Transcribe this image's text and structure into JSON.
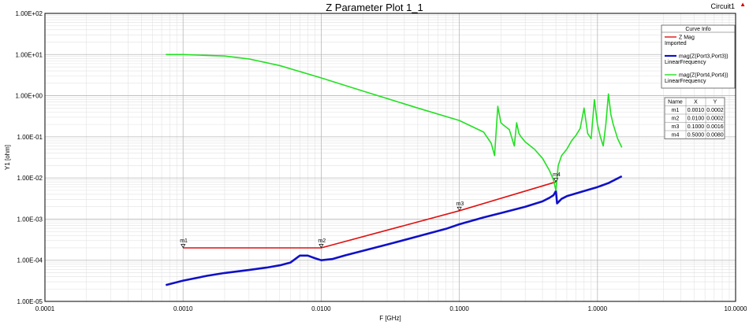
{
  "header": {
    "title": "Z Parameter Plot 1_1",
    "circuit": "Circuit1",
    "corner_icon": "red-triangle-icon"
  },
  "chart_data": {
    "type": "line",
    "title": "Z Parameter Plot 1_1",
    "xlabel": "F [GHz]",
    "ylabel": "Y1 [ohm]",
    "x_scale": "log",
    "y_scale": "log",
    "xlim": [
      0.0001,
      10.0
    ],
    "ylim": [
      1e-05,
      100.0
    ],
    "x_ticks": [
      "0.0001",
      "0.0010",
      "0.0100",
      "0.1000",
      "1.0000",
      "10.0000"
    ],
    "y_ticks": [
      "1.00E-05",
      "1.00E-04",
      "1.00E-03",
      "1.00E-02",
      "1.00E-01",
      "1.00E+00",
      "1.00E+01",
      "1.00E+02"
    ],
    "grid": true,
    "legend_title": "Curve Info",
    "legend_position": "top-right",
    "series": [
      {
        "name": "Z Mag",
        "sub": "Imported",
        "color": "#e01010",
        "x": [
          0.001,
          0.01,
          0.1,
          0.5
        ],
        "y": [
          0.0002,
          0.0002,
          0.0016,
          0.008
        ]
      },
      {
        "name": "mag(Z(Port3,Port3))",
        "sub": "LinearFrequency",
        "color": "#1010c8",
        "x": [
          0.00075,
          0.001,
          0.0015,
          0.002,
          0.003,
          0.004,
          0.005,
          0.006,
          0.007,
          0.008,
          0.009,
          0.01,
          0.012,
          0.015,
          0.02,
          0.03,
          0.05,
          0.08,
          0.1,
          0.15,
          0.2,
          0.3,
          0.4,
          0.45,
          0.48,
          0.5,
          0.51,
          0.55,
          0.6,
          0.8,
          1.0,
          1.2,
          1.5
        ],
        "y": [
          2.5e-05,
          3.2e-05,
          4.2e-05,
          4.9e-05,
          5.8e-05,
          6.6e-05,
          7.5e-05,
          8.8e-05,
          0.00013,
          0.00013,
          0.000112,
          0.0001,
          0.000107,
          0.000132,
          0.00017,
          0.00024,
          0.00038,
          0.00058,
          0.00075,
          0.0011,
          0.0014,
          0.002,
          0.0027,
          0.0033,
          0.0038,
          0.0048,
          0.0024,
          0.0031,
          0.0036,
          0.0048,
          0.006,
          0.0075,
          0.011
        ]
      },
      {
        "name": "mag(Z(Port4,Port4))",
        "sub": "LinearFrequency",
        "color": "#22e022",
        "x": [
          0.00075,
          0.001,
          0.002,
          0.003,
          0.005,
          0.01,
          0.02,
          0.05,
          0.1,
          0.15,
          0.17,
          0.18,
          0.19,
          0.2,
          0.21,
          0.23,
          0.25,
          0.26,
          0.27,
          0.28,
          0.3,
          0.35,
          0.4,
          0.45,
          0.48,
          0.5,
          0.52,
          0.55,
          0.6,
          0.65,
          0.7,
          0.75,
          0.8,
          0.85,
          0.9,
          0.95,
          1.0,
          1.05,
          1.1,
          1.15,
          1.2,
          1.25,
          1.3,
          1.4,
          1.5
        ],
        "y": [
          10,
          10,
          9.2,
          7.8,
          5.4,
          2.7,
          1.3,
          0.5,
          0.25,
          0.13,
          0.07,
          0.035,
          0.55,
          0.22,
          0.19,
          0.15,
          0.06,
          0.22,
          0.12,
          0.1,
          0.075,
          0.05,
          0.03,
          0.015,
          0.009,
          0.005,
          0.02,
          0.035,
          0.05,
          0.08,
          0.11,
          0.16,
          0.5,
          0.12,
          0.09,
          0.8,
          0.2,
          0.1,
          0.06,
          0.2,
          1.1,
          0.35,
          0.2,
          0.09,
          0.055
        ]
      }
    ],
    "markers": [
      {
        "name": "m1",
        "x": 0.001,
        "y": 0.0002,
        "x_label": "0.0010",
        "y_label": "0.0002"
      },
      {
        "name": "m2",
        "x": 0.01,
        "y": 0.0002,
        "x_label": "0.0100",
        "y_label": "0.0002"
      },
      {
        "name": "m3",
        "x": 0.1,
        "y": 0.0016,
        "x_label": "0.1000",
        "y_label": "0.0016"
      },
      {
        "name": "m4",
        "x": 0.5,
        "y": 0.008,
        "x_label": "0.5000",
        "y_label": "0.0080"
      }
    ],
    "marker_table_headers": [
      "Name",
      "X",
      "Y"
    ]
  }
}
